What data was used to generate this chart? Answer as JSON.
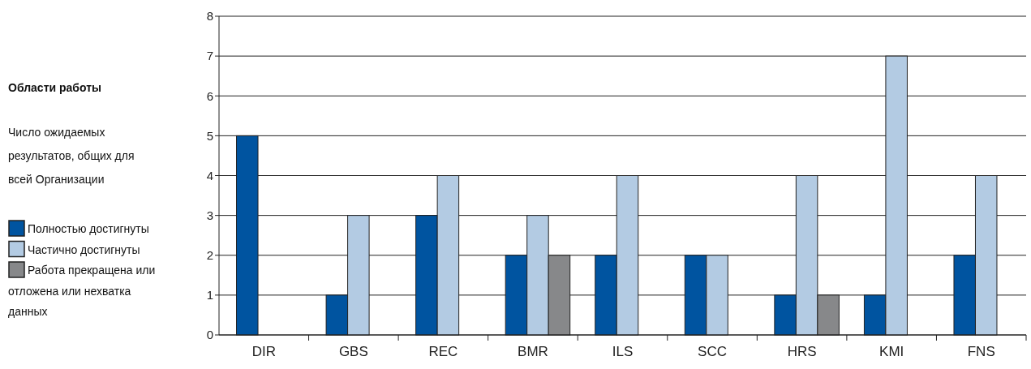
{
  "chart_data": {
    "type": "bar",
    "title": "Области работы",
    "subtitle": "Число ожидаемых результатов, общих для всей Организации",
    "categories": [
      "DIR",
      "GBS",
      "REC",
      "BMR",
      "ILS",
      "SCC",
      "HRS",
      "KMI",
      "FNS"
    ],
    "series": [
      {
        "name": "Полностью достигнуты",
        "color": "#0054a0",
        "values": [
          5,
          1,
          3,
          2,
          2,
          2,
          1,
          1,
          2
        ]
      },
      {
        "name": "Частично достигнуты",
        "color": "#b3cbe3",
        "values": [
          null,
          3,
          4,
          3,
          4,
          2,
          4,
          7,
          4
        ]
      },
      {
        "name": "Работа прекращена или отложена или нехватка данных",
        "color": "#87888a",
        "values": [
          null,
          null,
          null,
          2,
          null,
          null,
          1,
          null,
          null
        ]
      }
    ],
    "ylim": [
      0,
      8
    ],
    "yticks": [
      0,
      1,
      2,
      3,
      4,
      5,
      6,
      7,
      8
    ],
    "grid": "y",
    "legend": "left"
  }
}
